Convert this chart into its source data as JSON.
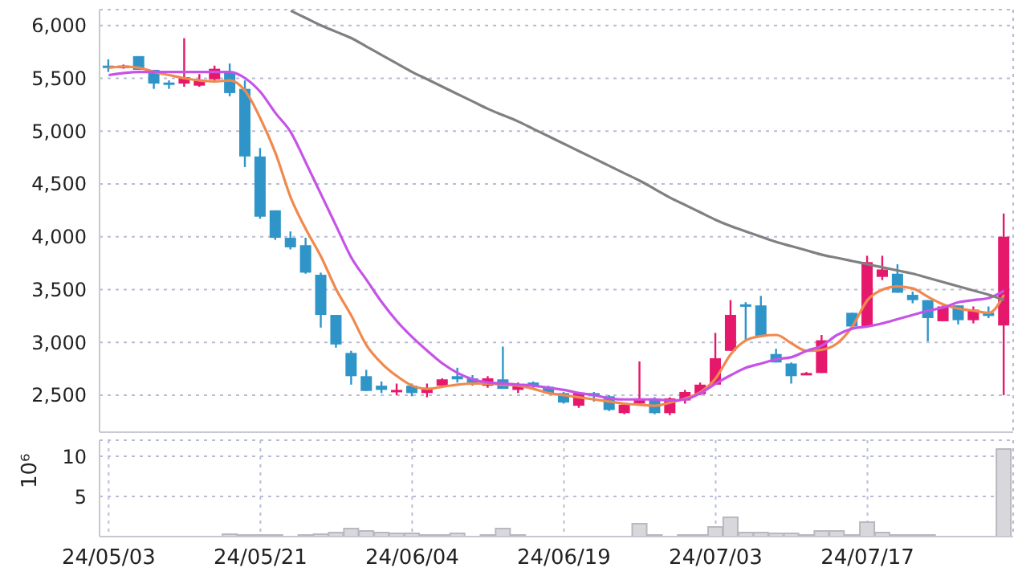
{
  "chart_data": [
    {
      "type": "candlestick",
      "categories": [
        null,
        null,
        null,
        null,
        null,
        null,
        null,
        null,
        null,
        null,
        null,
        null,
        null,
        null,
        null,
        null,
        null,
        null,
        null,
        null,
        null,
        null,
        null,
        null,
        null,
        null,
        null,
        null,
        null,
        null,
        null,
        null,
        null,
        null,
        null,
        null,
        null,
        null,
        null,
        null,
        null,
        null,
        null,
        null,
        null,
        null,
        null,
        null,
        null,
        null,
        null,
        null,
        null,
        null,
        null,
        null,
        null,
        null,
        null,
        null
      ],
      "ohlc": [
        [
          5620,
          5680,
          5560,
          5600
        ],
        [
          5610,
          5630,
          5590,
          5620
        ],
        [
          5710,
          5710,
          5580,
          5580
        ],
        [
          5580,
          5580,
          5400,
          5450
        ],
        [
          5460,
          5480,
          5400,
          5450
        ],
        [
          5450,
          5880,
          5420,
          5510
        ],
        [
          5430,
          5540,
          5420,
          5480
        ],
        [
          5490,
          5620,
          5480,
          5590
        ],
        [
          5560,
          5640,
          5330,
          5360
        ],
        [
          5400,
          5480,
          4660,
          4760
        ],
        [
          4760,
          4840,
          4170,
          4190
        ],
        [
          4250,
          4250,
          3970,
          3990
        ],
        [
          3990,
          4050,
          3880,
          3900
        ],
        [
          3920,
          3990,
          3650,
          3660
        ],
        [
          3640,
          3660,
          3140,
          3260
        ],
        [
          3260,
          3260,
          2950,
          2980
        ],
        [
          2900,
          2920,
          2600,
          2680
        ],
        [
          2680,
          2740,
          2540,
          2540
        ],
        [
          2590,
          2630,
          2520,
          2550
        ],
        [
          2540,
          2610,
          2500,
          2550
        ],
        [
          2590,
          2610,
          2490,
          2520
        ],
        [
          2520,
          2610,
          2480,
          2570
        ],
        [
          2590,
          2660,
          2580,
          2650
        ],
        [
          2680,
          2760,
          2620,
          2650
        ],
        [
          2660,
          2690,
          2590,
          2620
        ],
        [
          2590,
          2680,
          2570,
          2660
        ],
        [
          2650,
          2960,
          2560,
          2560
        ],
        [
          2550,
          2620,
          2520,
          2600
        ],
        [
          2620,
          2630,
          2560,
          2590
        ],
        [
          2580,
          2590,
          2510,
          2520
        ],
        [
          2520,
          2530,
          2420,
          2430
        ],
        [
          2400,
          2530,
          2380,
          2520
        ],
        [
          2520,
          2530,
          2440,
          2490
        ],
        [
          2490,
          2500,
          2350,
          2360
        ],
        [
          2330,
          2420,
          2320,
          2410
        ],
        [
          2420,
          2820,
          2410,
          2470
        ],
        [
          2470,
          2480,
          2320,
          2330
        ],
        [
          2330,
          2480,
          2310,
          2470
        ],
        [
          2450,
          2550,
          2420,
          2530
        ],
        [
          2510,
          2620,
          2500,
          2600
        ],
        [
          2600,
          3090,
          2600,
          2850
        ],
        [
          2920,
          3400,
          2920,
          3260
        ],
        [
          3360,
          3380,
          3020,
          3340
        ],
        [
          3350,
          3440,
          3050,
          3060
        ],
        [
          2890,
          2940,
          2810,
          2810
        ],
        [
          2800,
          2810,
          2610,
          2680
        ],
        [
          2700,
          2720,
          2690,
          2710
        ],
        [
          2710,
          3070,
          2710,
          3020
        ],
        null,
        [
          3280,
          3280,
          3130,
          3150
        ],
        [
          3150,
          3820,
          3150,
          3760
        ],
        [
          3620,
          3820,
          3590,
          3690
        ],
        [
          3650,
          3740,
          3470,
          3470
        ],
        [
          3450,
          3480,
          3370,
          3400
        ],
        [
          3400,
          3400,
          3010,
          3230
        ],
        [
          3200,
          3350,
          3200,
          3340
        ],
        [
          3350,
          3350,
          3170,
          3210
        ],
        [
          3210,
          3340,
          3180,
          3310
        ],
        [
          3280,
          3340,
          3230,
          3250
        ],
        [
          3160,
          4220,
          2500,
          4000
        ]
      ],
      "colors": [
        "#2f95c8",
        "#e6186b",
        "#2f95c8",
        "#2f95c8",
        "#2f95c8",
        "#e6186b",
        "#e6186b",
        "#e6186b",
        "#2f95c8",
        "#2f95c8",
        "#2f95c8",
        "#2f95c8",
        "#2f95c8",
        "#2f95c8",
        "#2f95c8",
        "#2f95c8",
        "#2f95c8",
        "#2f95c8",
        "#2f95c8",
        "#e6186b",
        "#2f95c8",
        "#e6186b",
        "#e6186b",
        "#2f95c8",
        "#2f95c8",
        "#e6186b",
        "#2f95c8",
        "#e6186b",
        "#2f95c8",
        "#2f95c8",
        "#2f95c8",
        "#e6186b",
        "#2f95c8",
        "#2f95c8",
        "#e6186b",
        "#e6186b",
        "#2f95c8",
        "#e6186b",
        "#e6186b",
        "#e6186b",
        "#e6186b",
        "#e6186b",
        "#2f95c8",
        "#2f95c8",
        "#2f95c8",
        "#2f95c8",
        "#e6186b",
        "#e6186b",
        null,
        "#2f95c8",
        "#e6186b",
        "#e6186b",
        "#2f95c8",
        "#2f95c8",
        "#2f95c8",
        "#e6186b",
        "#2f95c8",
        "#e6186b",
        "#2f95c8",
        "#e6186b"
      ],
      "series": [
        {
          "type": "line",
          "color": "#f0894e",
          "values": [
            5600,
            5610,
            5600,
            5560,
            5530,
            5500,
            5480,
            5470,
            5480,
            5380,
            5120,
            4790,
            4370,
            4070,
            3810,
            3500,
            3250,
            2970,
            2800,
            2680,
            2590,
            2560,
            2580,
            2600,
            2610,
            2610,
            2600,
            2590,
            2560,
            2520,
            2500,
            2480,
            2460,
            2440,
            2420,
            2410,
            2400,
            2430,
            2470,
            2530,
            2660,
            2890,
            3020,
            3060,
            3070,
            2990,
            2920,
            2930,
            2990,
            3150,
            3400,
            3500,
            3530,
            3510,
            3430,
            3360,
            3320,
            3300,
            3280,
            3450
          ]
        },
        {
          "type": "line",
          "color": "#c653e8",
          "values": [
            5530,
            5550,
            5560,
            5560,
            5560,
            5560,
            5560,
            5560,
            5560,
            5500,
            5370,
            5170,
            4990,
            4700,
            4400,
            4100,
            3800,
            3590,
            3380,
            3200,
            3050,
            2920,
            2800,
            2710,
            2650,
            2620,
            2610,
            2600,
            2590,
            2570,
            2550,
            2520,
            2500,
            2470,
            2460,
            2460,
            2460,
            2450,
            2460,
            2520,
            2610,
            2690,
            2760,
            2800,
            2840,
            2860,
            2920,
            2970,
            3070,
            3130,
            3150,
            3180,
            3220,
            3260,
            3300,
            3330,
            3380,
            3400,
            3420,
            3490
          ]
        },
        {
          "type": "line",
          "color": "#808080",
          "values": [
            null,
            null,
            null,
            null,
            null,
            null,
            null,
            null,
            null,
            null,
            null,
            null,
            6140,
            6070,
            6000,
            5940,
            5880,
            5800,
            5720,
            5640,
            5560,
            5490,
            5420,
            5350,
            5280,
            5210,
            5150,
            5090,
            5020,
            4950,
            4880,
            4810,
            4740,
            4670,
            4600,
            4530,
            4450,
            4370,
            4300,
            4230,
            4160,
            4100,
            4050,
            4000,
            3950,
            3910,
            3870,
            3830,
            3800,
            3770,
            3740,
            3710,
            3680,
            3650,
            3610,
            3570,
            3530,
            3490,
            3450,
            3400
          ]
        }
      ],
      "ylim": [
        2150,
        6150
      ],
      "yticks": [
        {
          "value": 2500,
          "label": "2,500"
        },
        {
          "value": 3000,
          "label": "3,000"
        },
        {
          "value": 3500,
          "label": "3,500"
        },
        {
          "value": 4000,
          "label": "4,000"
        },
        {
          "value": 4500,
          "label": "4,500"
        },
        {
          "value": 5000,
          "label": "5,000"
        },
        {
          "value": 5500,
          "label": "5,500"
        },
        {
          "value": 6000,
          "label": "6,000"
        }
      ],
      "grid": true,
      "tick_labels": "y",
      "marker": "none",
      "line_style": "solid"
    },
    {
      "type": "bar",
      "categories": [
        "24/05/03",
        null,
        null,
        null,
        null,
        null,
        null,
        null,
        null,
        null,
        "24/05/21",
        null,
        null,
        null,
        null,
        null,
        null,
        null,
        null,
        null,
        "24/06/04",
        null,
        null,
        null,
        null,
        null,
        null,
        null,
        null,
        null,
        "24/06/19",
        null,
        null,
        null,
        null,
        null,
        null,
        null,
        null,
        null,
        "24/07/03",
        null,
        null,
        null,
        null,
        null,
        null,
        null,
        null,
        null,
        "24/07/17",
        null,
        null,
        null,
        null,
        null,
        null,
        null,
        null,
        null
      ],
      "values": [
        0,
        0,
        0,
        0,
        0,
        0,
        0,
        0,
        0.3,
        0.2,
        0.2,
        0.2,
        0,
        0.2,
        0.3,
        0.5,
        1.0,
        0.7,
        0.5,
        0.4,
        0.4,
        0.2,
        0.2,
        0.4,
        0,
        0.2,
        1.0,
        0.2,
        0,
        0,
        0,
        0,
        0,
        0,
        0,
        1.6,
        0.2,
        0,
        0.2,
        0.2,
        1.2,
        2.4,
        0.5,
        0.5,
        0.4,
        0.4,
        0.2,
        0.7,
        0.7,
        0.2,
        1.8,
        0.5,
        0.2,
        0.2,
        0.2,
        0,
        0,
        0,
        0,
        10.9
      ],
      "color": "#d8d8dc",
      "ylabel": "10⁶",
      "ylim": [
        0,
        12
      ],
      "yticks": [
        5,
        10
      ],
      "grid": true
    }
  ]
}
